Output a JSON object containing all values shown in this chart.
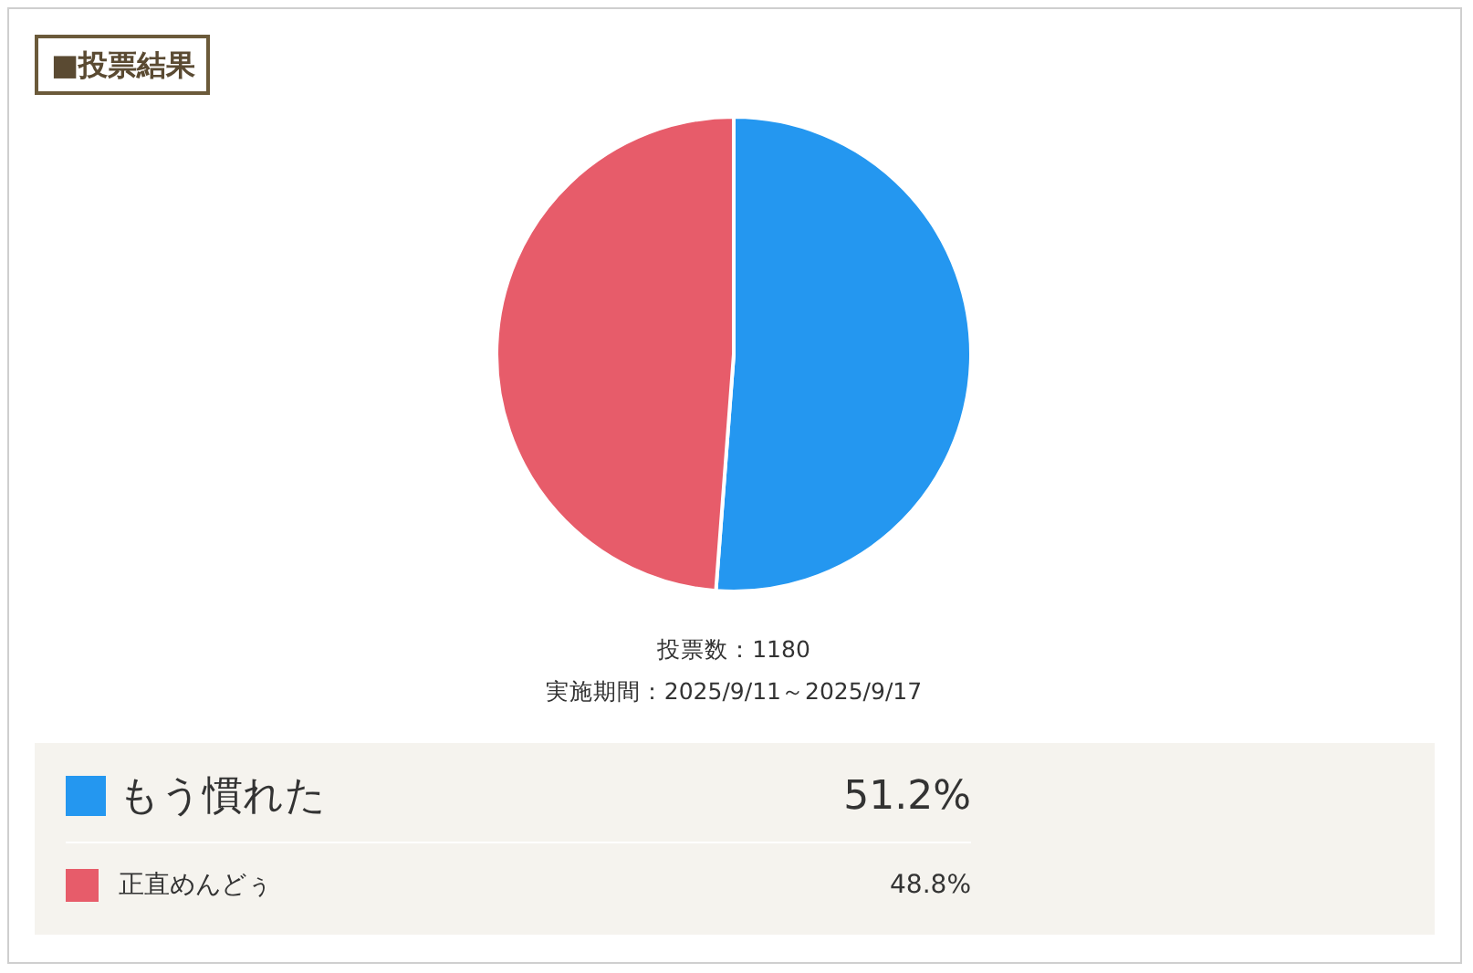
{
  "chart_data": {
    "type": "pie",
    "title": "■投票結果",
    "categories": [
      "もう慣れた",
      "正直めんどぅ"
    ],
    "values": [
      51.2,
      48.8
    ],
    "colors": [
      "#2497f0",
      "#e75c6a"
    ],
    "value_labels": [
      "51.2%",
      "48.8%"
    ],
    "legend": "bottom",
    "annotations": [
      "投票数：1180",
      "実施期間：2025/9/11～2025/9/17"
    ]
  }
}
